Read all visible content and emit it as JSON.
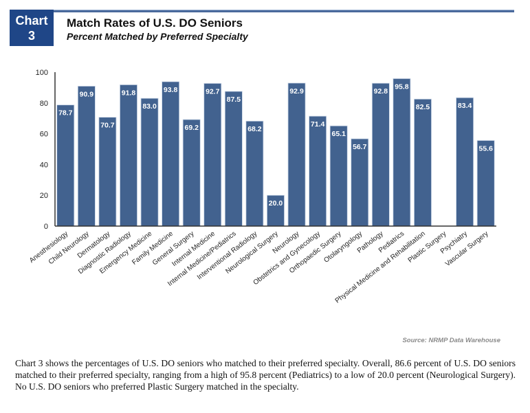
{
  "header": {
    "badge_line1": "Chart",
    "badge_line2": "3",
    "title": "Match Rates of U.S. DO Seniors",
    "subtitle": "Percent Matched by Preferred Specialty"
  },
  "colors": {
    "bar": "#42628f",
    "bar_edge": "#c9d5e6",
    "badge": "#1f4687",
    "axis": "#333333",
    "label_text": "#ffffff"
  },
  "chart_data": {
    "type": "bar",
    "title": "Match Rates of U.S. DO Seniors",
    "subtitle": "Percent Matched by Preferred Specialty",
    "xlabel": "",
    "ylabel": "",
    "ylim": [
      0,
      100
    ],
    "yticks": [
      0,
      20,
      40,
      60,
      80,
      100
    ],
    "grid": false,
    "legend": "none",
    "categories": [
      "Anesthesiology",
      "Child Neurology",
      "Dermatology",
      "Diagnostic Radiology",
      "Emergency Medicine",
      "Family Medicine",
      "General Surgery",
      "Internal Medicine",
      "Internal Medicine/Pediatrics",
      "Interventional Radiology",
      "Neurological Surgery",
      "Neurology",
      "Obstetrics and Gynecology",
      "Orthopaedic Surgery",
      "Otolaryngology",
      "Pathology",
      "Pediatrics",
      "Physical Medicine and Rehabilitation",
      "Plastic Surgery",
      "Psychiatry",
      "Vascular Surgery"
    ],
    "values": [
      78.7,
      90.9,
      70.7,
      91.8,
      83.0,
      93.8,
      69.2,
      92.7,
      87.5,
      68.2,
      20.0,
      92.9,
      71.4,
      65.1,
      56.7,
      92.8,
      95.8,
      82.5,
      0,
      83.4,
      55.6
    ],
    "data_labels": [
      "78.7",
      "90.9",
      "70.7",
      "91.8",
      "83.0",
      "93.8",
      "69.2",
      "92.7",
      "87.5",
      "68.2",
      "20.0",
      "92.9",
      "71.4",
      "65.1",
      "56.7",
      "92.8",
      "95.8",
      "82.5",
      "",
      "83.4",
      "55.6"
    ]
  },
  "source": "Source: NRMP Data Warehouse",
  "caption": "Chart 3 shows the percentages of U.S. DO seniors who matched to their preferred specialty. Overall, 86.6 percent of U.S. DO seniors matched to their preferred specialty, ranging from a high of 95.8 percent (Pediatrics) to a low of 20.0 percent (Neurological Surgery). No U.S. DO seniors who preferred Plastic Surgery matched in the specialty."
}
